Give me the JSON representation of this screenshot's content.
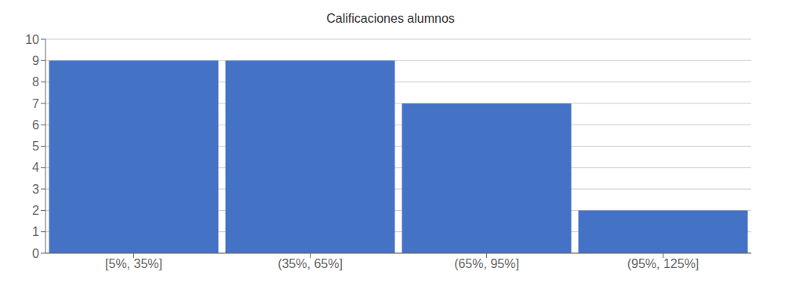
{
  "chart_data": {
    "type": "bar",
    "title": "Calificaciones alumnos",
    "categories": [
      "[5%, 35%]",
      "(35%, 65%]",
      "(65%, 95%]",
      "(95%, 125%]"
    ],
    "values": [
      9,
      9,
      7,
      2
    ],
    "color": "#4472C4",
    "ylim": [
      0,
      10
    ],
    "yticks": [
      0,
      1,
      2,
      3,
      4,
      5,
      6,
      7,
      8,
      9,
      10
    ],
    "grid": true
  }
}
